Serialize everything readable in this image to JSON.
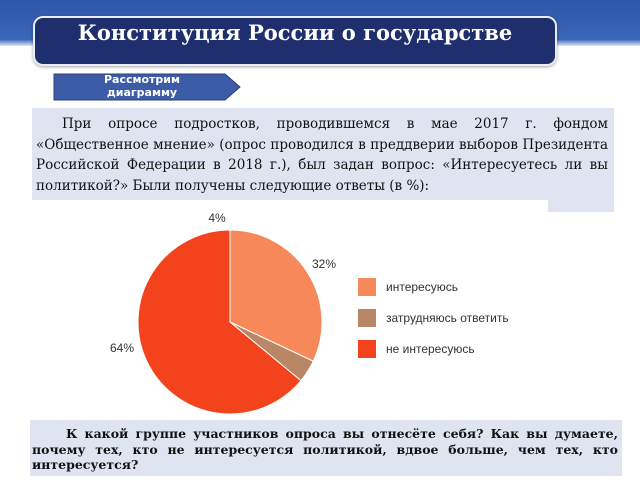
{
  "header": {
    "title": "Конституция России о государстве"
  },
  "subtitle": "Рассмотрим диаграмму",
  "intro": "При опросе подростков, проводившемся в мае 2017 г. фондом «Общественное мнение» (опрос проводился в преддверии выборов Президента Российской Федерации в 2018 г.), был задан вопрос: «Интересуетесь ли вы политикой?» Были получены следующие ответы (в %):",
  "question": "К какой группе участников опроса вы отнесёте себя? Как вы думаете, почему тех, кто не интересуется политикой, вдвое больше, чем тех, кто интересуется?",
  "colors": {
    "header_bg": "#2f57a8",
    "title_box": "#1f2f6e",
    "subtitle_arrow": "#3d5ca8",
    "text_panel": "#dfe4f0"
  },
  "chart_data": {
    "type": "pie",
    "title": "",
    "legend_position": "right",
    "slices": [
      {
        "label": "интересуюсь",
        "value": 32,
        "value_label": "32%",
        "color": "#f7885a"
      },
      {
        "label": "затрудняюсь ответить",
        "value": 4,
        "value_label": "4%",
        "color": "#b98766"
      },
      {
        "label": "не интересуюсь",
        "value": 64,
        "value_label": "64%",
        "color": "#f2431c"
      }
    ]
  }
}
